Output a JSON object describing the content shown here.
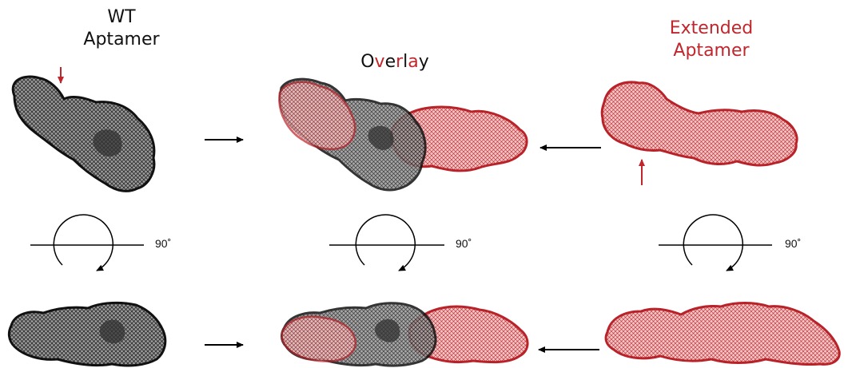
{
  "labels": {
    "wt_line1": "WT",
    "wt_line2": "Aptamer",
    "overlay_chars": [
      "O",
      "v",
      "e",
      "r",
      "l",
      "a",
      "y"
    ],
    "extended_line1": "Extended",
    "extended_line2": "Aptamer",
    "rotation": [
      "90˚",
      "90˚",
      "90˚"
    ]
  },
  "colors": {
    "wt": "#222222",
    "extended": "#c0272d",
    "extended_fill": "#f2b8b8",
    "wt_fill": "#8a8a8a",
    "overlay_letter_colors": [
      "#111111",
      "#c0272d",
      "#111111",
      "#c0272d",
      "#111111",
      "#c0272d",
      "#111111"
    ]
  }
}
